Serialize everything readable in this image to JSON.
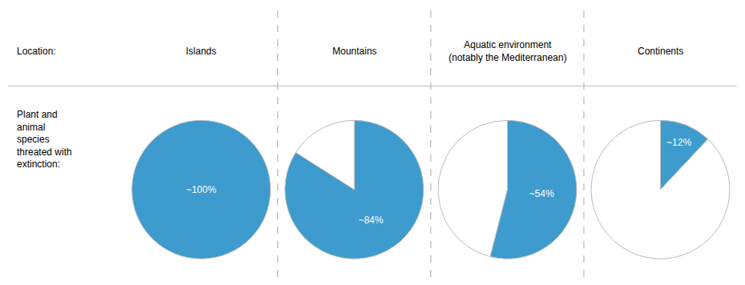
{
  "chart_data": [
    {
      "type": "pie",
      "title": "Islands",
      "values": [
        100
      ],
      "value_labels": [
        "~100%"
      ],
      "colors": [
        "#3d9bce"
      ],
      "annotations": [
        "Location:",
        "Plant and\nanimal\nspecies\nthreated with\nextinction:"
      ]
    },
    {
      "type": "pie",
      "title": "Mountains",
      "values": [
        84,
        16
      ],
      "value_labels": [
        "~84%",
        null
      ],
      "colors": [
        "#3d9bce",
        "#ffffff"
      ]
    },
    {
      "type": "pie",
      "title": "Aquatic environment\n(notably the Mediterranean)",
      "values": [
        54,
        46
      ],
      "value_labels": [
        "~54%",
        null
      ],
      "colors": [
        "#3d9bce",
        "#ffffff"
      ]
    },
    {
      "type": "pie",
      "title": "Continents",
      "values": [
        12,
        88
      ],
      "value_labels": [
        "~12%",
        null
      ],
      "colors": [
        "#3d9bce",
        "#ffffff"
      ]
    }
  ]
}
